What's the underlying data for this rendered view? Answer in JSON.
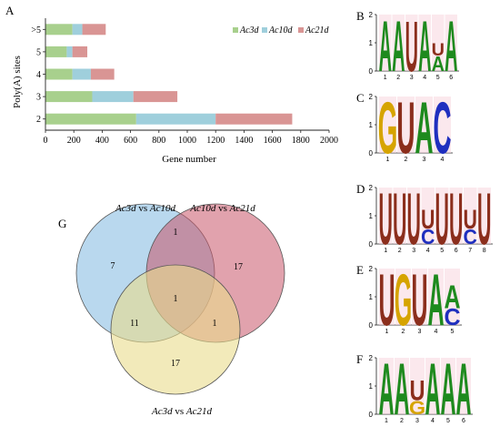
{
  "panel_labels": {
    "A": "A",
    "B": "B",
    "C": "C",
    "D": "D",
    "E": "E",
    "F": "F",
    "G": "G"
  },
  "colors": {
    "ac3d": "#a8d08d",
    "ac10d": "#9fcfdc",
    "ac21d": "#d99594",
    "venn_a": "#7fb8e0",
    "venn_b": "#c9566a",
    "venn_c": "#e9dc8c",
    "A": "#1e8a1e",
    "U": "#8b2e1c",
    "G": "#d6a400",
    "C": "#1f2fbf"
  },
  "chart_data": [
    {
      "type": "bar",
      "orientation": "horizontal",
      "stacked": true,
      "categories": [
        "2",
        "3",
        "4",
        "5",
        ">5"
      ],
      "series": [
        {
          "name": "Ac3d",
          "values": [
            640,
            330,
            190,
            150,
            190
          ]
        },
        {
          "name": "Ac10d",
          "values": [
            560,
            290,
            130,
            40,
            70
          ]
        },
        {
          "name": "Ac21d",
          "values": [
            540,
            310,
            165,
            105,
            165
          ]
        }
      ],
      "xlabel": "Gene number",
      "ylabel": "Poly(A) sites",
      "xlim": [
        0,
        2000
      ],
      "xticks": [
        "0",
        "200",
        "400",
        "600",
        "800",
        "1000",
        "1200",
        "1400",
        "1600",
        "1800",
        "2000"
      ],
      "legend_position": "top-right"
    }
  ],
  "legend": [
    {
      "name": "Ac3d",
      "color": "#a8d08d"
    },
    {
      "name": "Ac10d",
      "color": "#9fcfdc"
    },
    {
      "name": "Ac21d",
      "color": "#d99594"
    }
  ],
  "logos": [
    {
      "label": "B",
      "yticks": [
        "0",
        "1",
        "2"
      ],
      "positions": [
        "1",
        "2",
        "3",
        "4",
        "5",
        "6"
      ],
      "letters": [
        [
          [
            "A",
            1.85
          ]
        ],
        [
          [
            "A",
            1.85
          ]
        ],
        [
          [
            "U",
            1.85
          ]
        ],
        [
          [
            "A",
            1.85
          ]
        ],
        [
          [
            "A",
            0.55
          ],
          [
            "U",
            0.45
          ]
        ],
        [
          [
            "A",
            1.85
          ]
        ]
      ]
    },
    {
      "label": "C",
      "yticks": [
        "0",
        "1",
        "2"
      ],
      "positions": [
        "1",
        "2",
        "3",
        "4"
      ],
      "letters": [
        [
          [
            "G",
            1.9
          ]
        ],
        [
          [
            "U",
            1.9
          ]
        ],
        [
          [
            "A",
            1.9
          ]
        ],
        [
          [
            "C",
            1.9
          ]
        ]
      ]
    },
    {
      "label": "D",
      "yticks": [
        "0",
        "1",
        "2"
      ],
      "positions": [
        "1",
        "2",
        "3",
        "4",
        "5",
        "6",
        "7",
        "8"
      ],
      "letters": [
        [
          [
            "U",
            1.9
          ]
        ],
        [
          [
            "U",
            1.9
          ]
        ],
        [
          [
            "U",
            1.9
          ]
        ],
        [
          [
            "C",
            0.55
          ],
          [
            "U",
            0.7
          ]
        ],
        [
          [
            "U",
            1.9
          ]
        ],
        [
          [
            "U",
            1.9
          ]
        ],
        [
          [
            "C",
            0.55
          ],
          [
            "U",
            0.7
          ]
        ],
        [
          [
            "U",
            1.9
          ]
        ]
      ]
    },
    {
      "label": "E",
      "yticks": [
        "0",
        "1",
        "2"
      ],
      "positions": [
        "1",
        "2",
        "3",
        "4",
        "5"
      ],
      "letters": [
        [
          [
            "U",
            1.9
          ]
        ],
        [
          [
            "G",
            1.9
          ]
        ],
        [
          [
            "U",
            1.9
          ]
        ],
        [
          [
            "A",
            1.9
          ]
        ],
        [
          [
            "C",
            0.6
          ],
          [
            "A",
            0.85
          ]
        ]
      ]
    },
    {
      "label": "F",
      "yticks": [
        "0",
        "1",
        "2"
      ],
      "positions": [
        "1",
        "2",
        "3",
        "4",
        "5",
        "6"
      ],
      "letters": [
        [
          [
            "A",
            1.9
          ]
        ],
        [
          [
            "A",
            1.9
          ]
        ],
        [
          [
            "G",
            0.5
          ],
          [
            "U",
            0.75
          ]
        ],
        [
          [
            "A",
            1.9
          ]
        ],
        [
          [
            "A",
            1.9
          ]
        ],
        [
          [
            "A",
            1.9
          ]
        ]
      ]
    }
  ],
  "venn": {
    "set_labels": {
      "a": {
        "s1": "Ac3d",
        "mid": " vs ",
        "s2": "Ac10d"
      },
      "b": {
        "s1": "Ac10d",
        "mid": " vs ",
        "s2": "Ac21d"
      },
      "c": {
        "s1": "Ac3d",
        "mid": " vs ",
        "s2": "Ac21d"
      }
    },
    "counts": {
      "a_only": "7",
      "b_only": "17",
      "c_only": "17",
      "ab": "1",
      "ac": "11",
      "bc": "1",
      "abc": "1"
    }
  }
}
